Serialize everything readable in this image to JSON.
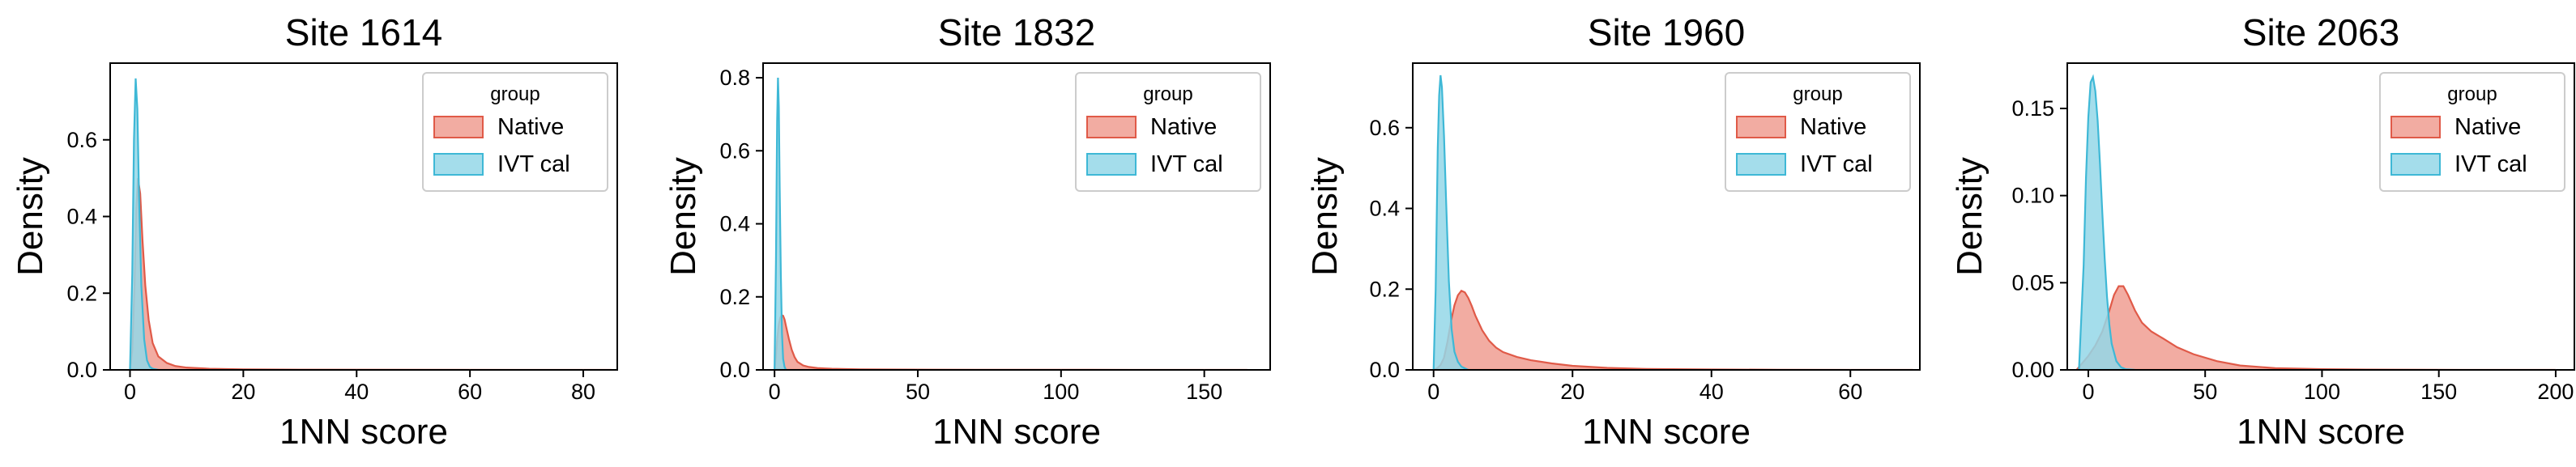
{
  "figure": {
    "background": "#ffffff"
  },
  "chart_data": [
    {
      "type": "area",
      "title": "Site 1614",
      "xlabel": "1NN score",
      "ylabel": "Density",
      "xlim": [
        -3.5,
        86
      ],
      "ylim": [
        0,
        0.8
      ],
      "xticks": [
        0,
        20,
        40,
        60,
        80
      ],
      "yticks": [
        0.0,
        0.2,
        0.4,
        0.6
      ],
      "legend": {
        "title": "group",
        "position": "top-right",
        "entries": [
          "Native",
          "IVT cal"
        ]
      },
      "series": [
        {
          "name": "Native",
          "fill": "#f09e92",
          "stroke": "#e05a48",
          "x": [
            0,
            0.4,
            0.8,
            1.1,
            1.4,
            1.8,
            2.2,
            2.7,
            3.3,
            4,
            5,
            6.5,
            8,
            10,
            14,
            20,
            30,
            50,
            85
          ],
          "y": [
            0,
            0.05,
            0.22,
            0.42,
            0.5,
            0.46,
            0.34,
            0.22,
            0.13,
            0.07,
            0.035,
            0.018,
            0.01,
            0.006,
            0.003,
            0.0015,
            0.0007,
            0.0003,
            0
          ]
        },
        {
          "name": "IVT cal",
          "fill": "#94d7e8",
          "stroke": "#3eb8d6",
          "x": [
            0,
            0.4,
            0.7,
            1,
            1.3,
            1.6,
            2,
            2.5,
            3,
            3.5,
            4,
            5
          ],
          "y": [
            0,
            0.25,
            0.6,
            0.76,
            0.68,
            0.45,
            0.22,
            0.08,
            0.025,
            0.008,
            0.003,
            0
          ]
        }
      ]
    },
    {
      "type": "area",
      "title": "Site 1832",
      "xlabel": "1NN score",
      "ylabel": "Density",
      "xlim": [
        -4,
        173
      ],
      "ylim": [
        0,
        0.84
      ],
      "xticks": [
        0,
        50,
        100,
        150
      ],
      "yticks": [
        0.0,
        0.2,
        0.4,
        0.6,
        0.8
      ],
      "legend": {
        "title": "group",
        "position": "top-right",
        "entries": [
          "Native",
          "IVT cal"
        ]
      },
      "series": [
        {
          "name": "Native",
          "fill": "#f09e92",
          "stroke": "#e05a48",
          "x": [
            0,
            0.5,
            1,
            1.5,
            2,
            2.5,
            3,
            3.5,
            4,
            5,
            6,
            7,
            8,
            10,
            12,
            15,
            20,
            30,
            45,
            70,
            110,
            165
          ],
          "y": [
            0,
            0.04,
            0.09,
            0.125,
            0.143,
            0.15,
            0.148,
            0.138,
            0.12,
            0.085,
            0.055,
            0.035,
            0.022,
            0.012,
            0.008,
            0.005,
            0.003,
            0.0015,
            0.0008,
            0.0004,
            0.0002,
            0
          ]
        },
        {
          "name": "IVT cal",
          "fill": "#94d7e8",
          "stroke": "#3eb8d6",
          "x": [
            0,
            0.5,
            0.9,
            1.2,
            1.5,
            1.8,
            2.2,
            2.6,
            3,
            3.5,
            4
          ],
          "y": [
            0,
            0.3,
            0.68,
            0.8,
            0.72,
            0.5,
            0.26,
            0.1,
            0.03,
            0.008,
            0
          ]
        }
      ]
    },
    {
      "type": "area",
      "title": "Site 1960",
      "xlabel": "1NN score",
      "ylabel": "Density",
      "xlim": [
        -3,
        70
      ],
      "ylim": [
        0,
        0.76
      ],
      "xticks": [
        0,
        20,
        40,
        60
      ],
      "yticks": [
        0.0,
        0.2,
        0.4,
        0.6
      ],
      "legend": {
        "title": "group",
        "position": "top-right",
        "entries": [
          "Native",
          "IVT cal"
        ]
      },
      "series": [
        {
          "name": "Native",
          "fill": "#f09e92",
          "stroke": "#e05a48",
          "x": [
            0,
            0.5,
            1,
            1.5,
            2,
            2.5,
            3,
            3.5,
            4,
            4.5,
            5,
            5.5,
            6,
            7,
            8,
            9,
            10,
            12,
            14,
            17,
            20,
            25,
            30,
            40,
            50,
            60,
            69
          ],
          "y": [
            0,
            0.004,
            0.012,
            0.03,
            0.07,
            0.12,
            0.16,
            0.185,
            0.196,
            0.192,
            0.178,
            0.158,
            0.135,
            0.098,
            0.072,
            0.055,
            0.044,
            0.032,
            0.024,
            0.016,
            0.01,
            0.005,
            0.0025,
            0.001,
            0.0004,
            0.0001,
            0
          ]
        },
        {
          "name": "IVT cal",
          "fill": "#94d7e8",
          "stroke": "#3eb8d6",
          "x": [
            0,
            0.3,
            0.6,
            0.8,
            1,
            1.2,
            1.5,
            1.8,
            2.2,
            2.6,
            3,
            3.5,
            4,
            5
          ],
          "y": [
            0,
            0.2,
            0.55,
            0.68,
            0.73,
            0.7,
            0.58,
            0.42,
            0.22,
            0.1,
            0.045,
            0.02,
            0.008,
            0
          ]
        }
      ]
    },
    {
      "type": "area",
      "title": "Site 2063",
      "xlabel": "1NN score",
      "ylabel": "Density",
      "xlim": [
        -9,
        208
      ],
      "ylim": [
        0,
        0.176
      ],
      "xticks": [
        0,
        50,
        100,
        150,
        200
      ],
      "yticks": [
        0.0,
        0.05,
        0.1,
        0.15
      ],
      "ytick_labels": [
        "0.00",
        "0.05",
        "0.10",
        "0.15"
      ],
      "legend": {
        "title": "group",
        "position": "top-right",
        "entries": [
          "Native",
          "IVT cal"
        ]
      },
      "series": [
        {
          "name": "Native",
          "fill": "#f09e92",
          "stroke": "#e05a48",
          "x": [
            -5,
            0,
            3,
            6,
            9,
            11,
            13,
            15,
            17,
            20,
            23,
            27,
            32,
            38,
            45,
            55,
            65,
            80,
            100,
            130,
            160,
            200
          ],
          "y": [
            0,
            0.008,
            0.014,
            0.022,
            0.034,
            0.043,
            0.048,
            0.048,
            0.043,
            0.034,
            0.027,
            0.022,
            0.018,
            0.013,
            0.009,
            0.005,
            0.0025,
            0.001,
            0.0004,
            0.0001,
            3e-05,
            0
          ]
        },
        {
          "name": "IVT cal",
          "fill": "#94d7e8",
          "stroke": "#3eb8d6",
          "x": [
            -4,
            -2,
            -1,
            0,
            1,
            2,
            3,
            4,
            5,
            6,
            7,
            8,
            9,
            10,
            12,
            14,
            16,
            20
          ],
          "y": [
            0,
            0.06,
            0.11,
            0.145,
            0.165,
            0.168,
            0.16,
            0.143,
            0.118,
            0.09,
            0.064,
            0.042,
            0.026,
            0.015,
            0.005,
            0.0015,
            0.0004,
            0
          ]
        }
      ]
    }
  ]
}
